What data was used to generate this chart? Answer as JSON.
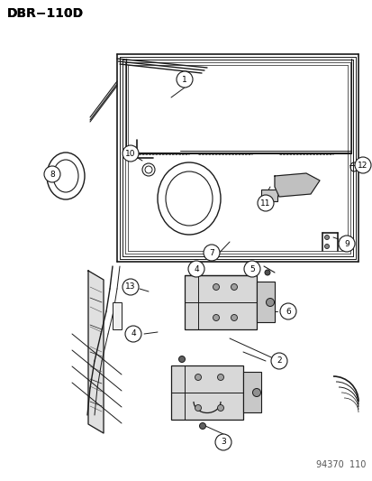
{
  "title": "DBR−110D",
  "watermark": "94370  110",
  "bg_color": "#ffffff",
  "title_fontsize": 10,
  "watermark_fontsize": 7,
  "line_color": "#1a1a1a",
  "gray_fill": "#d8d8d8",
  "light_gray": "#ebebeb"
}
